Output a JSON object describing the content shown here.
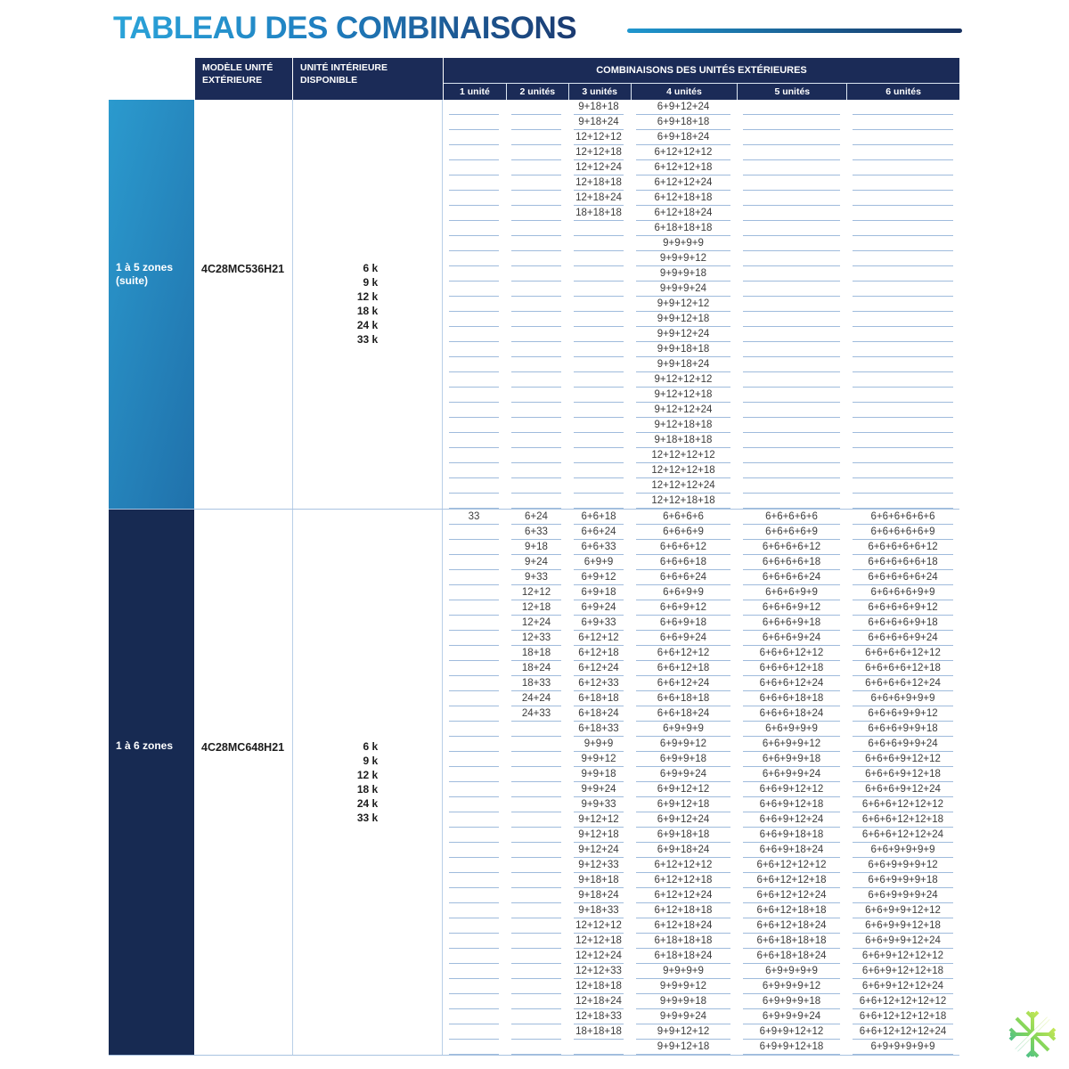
{
  "page": {
    "title": "TABLEAU DES COMBINAISONS"
  },
  "colors": {
    "title_gradient_start": "#2ba4d9",
    "title_gradient_end": "#1b3a70",
    "header_navy": "#1b2b57",
    "section1_blue": "#2b9ace",
    "section2_navy": "#172a52",
    "grid_line_blue": "#9fbbdc"
  },
  "icons": {
    "footer_logo": "snowflake-logo"
  },
  "table": {
    "headers": {
      "model": "MODÈLE UNITÉ EXTÉRIEURE",
      "indoor": "UNITÉ INTÉRIEURE DISPONIBLE",
      "combos": "COMBINAISONS DES UNITÉS EXTÉRIEURES",
      "combo_cols": [
        "1 unité",
        "2 unités",
        "3 unités",
        "4 unités",
        "5 unités",
        "6 unités"
      ]
    },
    "sections": [
      {
        "zone": "1 à 5 zones",
        "zone_suffix": "(suite)",
        "model": "4C28MC536H21",
        "indoor_units": [
          "6 k",
          "9 k",
          "12 k",
          "18 k",
          "24 k",
          "33 k"
        ],
        "rows": [
          [
            "",
            "",
            "9+18+18",
            "6+9+12+24",
            "",
            ""
          ],
          [
            "",
            "",
            "9+18+24",
            "6+9+18+18",
            "",
            ""
          ],
          [
            "",
            "",
            "12+12+12",
            "6+9+18+24",
            "",
            ""
          ],
          [
            "",
            "",
            "12+12+18",
            "6+12+12+12",
            "",
            ""
          ],
          [
            "",
            "",
            "12+12+24",
            "6+12+12+18",
            "",
            ""
          ],
          [
            "",
            "",
            "12+18+18",
            "6+12+12+24",
            "",
            ""
          ],
          [
            "",
            "",
            "12+18+24",
            "6+12+18+18",
            "",
            ""
          ],
          [
            "",
            "",
            "18+18+18",
            "6+12+18+24",
            "",
            ""
          ],
          [
            "",
            "",
            "",
            "6+18+18+18",
            "",
            ""
          ],
          [
            "",
            "",
            "",
            "9+9+9+9",
            "",
            ""
          ],
          [
            "",
            "",
            "",
            "9+9+9+12",
            "",
            ""
          ],
          [
            "",
            "",
            "",
            "9+9+9+18",
            "",
            ""
          ],
          [
            "",
            "",
            "",
            "9+9+9+24",
            "",
            ""
          ],
          [
            "",
            "",
            "",
            "9+9+12+12",
            "",
            ""
          ],
          [
            "",
            "",
            "",
            "9+9+12+18",
            "",
            ""
          ],
          [
            "",
            "",
            "",
            "9+9+12+24",
            "",
            ""
          ],
          [
            "",
            "",
            "",
            "9+9+18+18",
            "",
            ""
          ],
          [
            "",
            "",
            "",
            "9+9+18+24",
            "",
            ""
          ],
          [
            "",
            "",
            "",
            "9+12+12+12",
            "",
            ""
          ],
          [
            "",
            "",
            "",
            "9+12+12+18",
            "",
            ""
          ],
          [
            "",
            "",
            "",
            "9+12+12+24",
            "",
            ""
          ],
          [
            "",
            "",
            "",
            "9+12+18+18",
            "",
            ""
          ],
          [
            "",
            "",
            "",
            "9+18+18+18",
            "",
            ""
          ],
          [
            "",
            "",
            "",
            "12+12+12+12",
            "",
            ""
          ],
          [
            "",
            "",
            "",
            "12+12+12+18",
            "",
            ""
          ],
          [
            "",
            "",
            "",
            "12+12+12+24",
            "",
            ""
          ],
          [
            "",
            "",
            "",
            "12+12+18+18",
            "",
            ""
          ]
        ]
      },
      {
        "zone": "1 à 6 zones",
        "zone_suffix": "",
        "model": "4C28MC648H21",
        "indoor_units": [
          "6 k",
          "9 k",
          "12 k",
          "18 k",
          "24 k",
          "33 k"
        ],
        "rows": [
          [
            "33",
            "6+24",
            "6+6+18",
            "6+6+6+6",
            "6+6+6+6+6",
            "6+6+6+6+6+6"
          ],
          [
            "",
            "6+33",
            "6+6+24",
            "6+6+6+9",
            "6+6+6+6+9",
            "6+6+6+6+6+9"
          ],
          [
            "",
            "9+18",
            "6+6+33",
            "6+6+6+12",
            "6+6+6+6+12",
            "6+6+6+6+6+12"
          ],
          [
            "",
            "9+24",
            "6+9+9",
            "6+6+6+18",
            "6+6+6+6+18",
            "6+6+6+6+6+18"
          ],
          [
            "",
            "9+33",
            "6+9+12",
            "6+6+6+24",
            "6+6+6+6+24",
            "6+6+6+6+6+24"
          ],
          [
            "",
            "12+12",
            "6+9+18",
            "6+6+9+9",
            "6+6+6+9+9",
            "6+6+6+6+9+9"
          ],
          [
            "",
            "12+18",
            "6+9+24",
            "6+6+9+12",
            "6+6+6+9+12",
            "6+6+6+6+9+12"
          ],
          [
            "",
            "12+24",
            "6+9+33",
            "6+6+9+18",
            "6+6+6+9+18",
            "6+6+6+6+9+18"
          ],
          [
            "",
            "12+33",
            "6+12+12",
            "6+6+9+24",
            "6+6+6+9+24",
            "6+6+6+6+9+24"
          ],
          [
            "",
            "18+18",
            "6+12+18",
            "6+6+12+12",
            "6+6+6+12+12",
            "6+6+6+6+12+12"
          ],
          [
            "",
            "18+24",
            "6+12+24",
            "6+6+12+18",
            "6+6+6+12+18",
            "6+6+6+6+12+18"
          ],
          [
            "",
            "18+33",
            "6+12+33",
            "6+6+12+24",
            "6+6+6+12+24",
            "6+6+6+6+12+24"
          ],
          [
            "",
            "24+24",
            "6+18+18",
            "6+6+18+18",
            "6+6+6+18+18",
            "6+6+6+9+9+9"
          ],
          [
            "",
            "24+33",
            "6+18+24",
            "6+6+18+24",
            "6+6+6+18+24",
            "6+6+6+9+9+12"
          ],
          [
            "",
            "",
            "6+18+33",
            "6+9+9+9",
            "6+6+9+9+9",
            "6+6+6+9+9+18"
          ],
          [
            "",
            "",
            "9+9+9",
            "6+9+9+12",
            "6+6+9+9+12",
            "6+6+6+9+9+24"
          ],
          [
            "",
            "",
            "9+9+12",
            "6+9+9+18",
            "6+6+9+9+18",
            "6+6+6+9+12+12"
          ],
          [
            "",
            "",
            "9+9+18",
            "6+9+9+24",
            "6+6+9+9+24",
            "6+6+6+9+12+18"
          ],
          [
            "",
            "",
            "9+9+24",
            "6+9+12+12",
            "6+6+9+12+12",
            "6+6+6+9+12+24"
          ],
          [
            "",
            "",
            "9+9+33",
            "6+9+12+18",
            "6+6+9+12+18",
            "6+6+6+12+12+12"
          ],
          [
            "",
            "",
            "9+12+12",
            "6+9+12+24",
            "6+6+9+12+24",
            "6+6+6+12+12+18"
          ],
          [
            "",
            "",
            "9+12+18",
            "6+9+18+18",
            "6+6+9+18+18",
            "6+6+6+12+12+24"
          ],
          [
            "",
            "",
            "9+12+24",
            "6+9+18+24",
            "6+6+9+18+24",
            "6+6+9+9+9+9"
          ],
          [
            "",
            "",
            "9+12+33",
            "6+12+12+12",
            "6+6+12+12+12",
            "6+6+9+9+9+12"
          ],
          [
            "",
            "",
            "9+18+18",
            "6+12+12+18",
            "6+6+12+12+18",
            "6+6+9+9+9+18"
          ],
          [
            "",
            "",
            "9+18+24",
            "6+12+12+24",
            "6+6+12+12+24",
            "6+6+9+9+9+24"
          ],
          [
            "",
            "",
            "9+18+33",
            "6+12+18+18",
            "6+6+12+18+18",
            "6+6+9+9+12+12"
          ],
          [
            "",
            "",
            "12+12+12",
            "6+12+18+24",
            "6+6+12+18+24",
            "6+6+9+9+12+18"
          ],
          [
            "",
            "",
            "12+12+18",
            "6+18+18+18",
            "6+6+18+18+18",
            "6+6+9+9+12+24"
          ],
          [
            "",
            "",
            "12+12+24",
            "6+18+18+24",
            "6+6+18+18+24",
            "6+6+9+12+12+12"
          ],
          [
            "",
            "",
            "12+12+33",
            "9+9+9+9",
            "6+9+9+9+9",
            "6+6+9+12+12+18"
          ],
          [
            "",
            "",
            "12+18+18",
            "9+9+9+12",
            "6+9+9+9+12",
            "6+6+9+12+12+24"
          ],
          [
            "",
            "",
            "12+18+24",
            "9+9+9+18",
            "6+9+9+9+18",
            "6+6+12+12+12+12"
          ],
          [
            "",
            "",
            "12+18+33",
            "9+9+9+24",
            "6+9+9+9+24",
            "6+6+12+12+12+18"
          ],
          [
            "",
            "",
            "18+18+18",
            "9+9+12+12",
            "6+9+9+12+12",
            "6+6+12+12+12+24"
          ],
          [
            "",
            "",
            "",
            "9+9+12+18",
            "6+9+9+12+18",
            "6+9+9+9+9+9"
          ]
        ]
      }
    ]
  }
}
